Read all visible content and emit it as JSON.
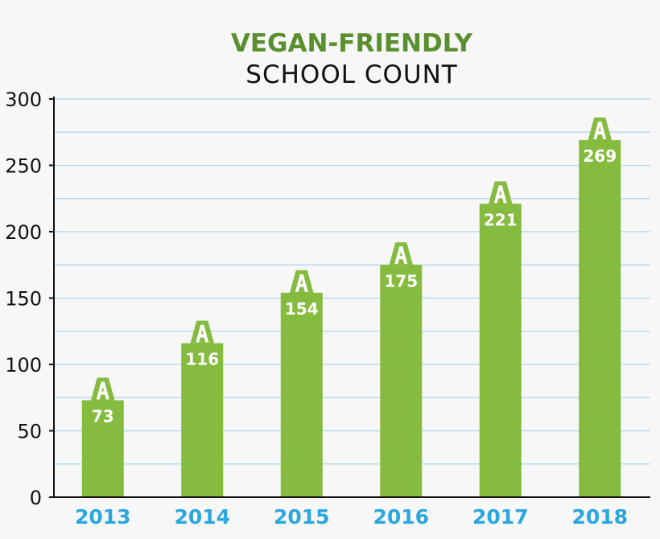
{
  "chart_data": {
    "type": "bar",
    "title": "VEGAN-FRIENDLY",
    "subtitle": "SCHOOL COUNT",
    "xlabel": "",
    "ylabel": "",
    "categories": [
      "2013",
      "2014",
      "2015",
      "2016",
      "2017",
      "2018"
    ],
    "values": [
      73,
      116,
      154,
      175,
      221,
      269
    ],
    "ylim": [
      0,
      300
    ],
    "yticks": [
      0,
      50,
      100,
      150,
      200,
      250,
      300
    ],
    "minor_gridline_step": 25,
    "grid": true,
    "legend": "none",
    "bar_icon": "school-roof-icon",
    "colors": {
      "bar": "#85bb3f",
      "title": "#5a8f2e",
      "subtitle": "#111111",
      "category_labels": "#2aa7df",
      "gridlines": "#a9d6ef",
      "axis": "#111111",
      "data_labels": "#ffffff"
    }
  }
}
